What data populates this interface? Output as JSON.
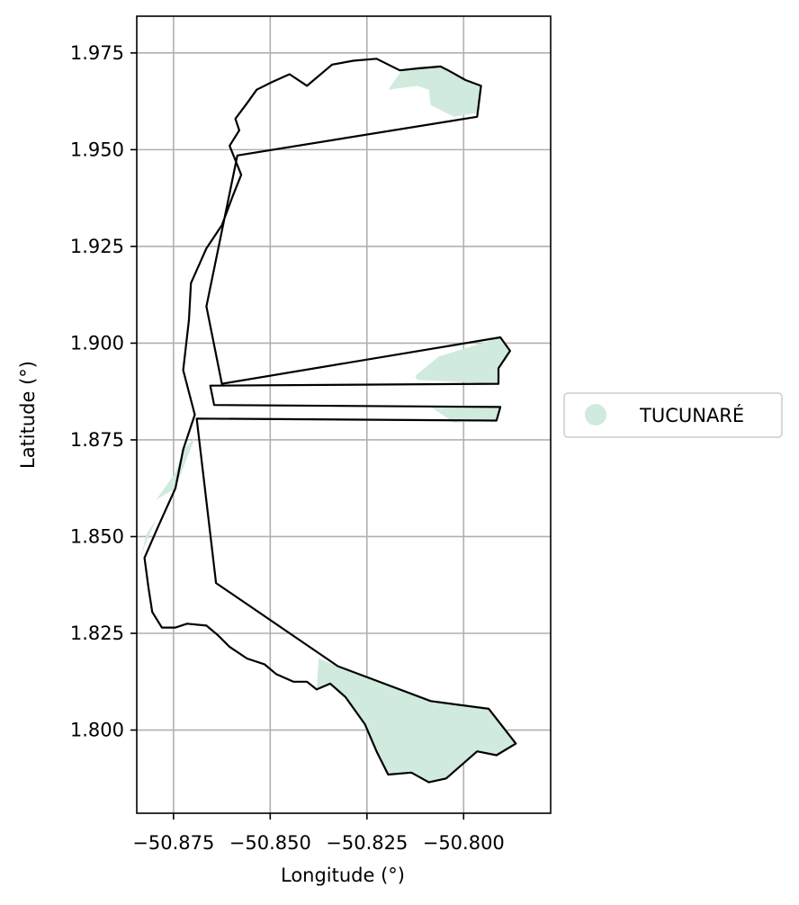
{
  "chart_data": {
    "type": "map",
    "xlabel": "Longitude (°)",
    "ylabel": "Latitude (°)",
    "xlim": [
      -50.8845,
      -50.7775
    ],
    "ylim": [
      1.7785,
      1.9845
    ],
    "grid": true,
    "xticks": [
      -50.875,
      -50.85,
      -50.825,
      -50.8
    ],
    "yticks": [
      1.8,
      1.825,
      1.85,
      1.875,
      1.9,
      1.925,
      1.95,
      1.975
    ],
    "xtick_labels": [
      "−50.875",
      "−50.850",
      "−50.825",
      "−50.800"
    ],
    "ytick_labels": [
      "1.800",
      "1.825",
      "1.850",
      "1.875",
      "1.900",
      "1.925",
      "1.950",
      "1.975"
    ],
    "legend": {
      "placement": "center-right outside",
      "entries": [
        {
          "label": "TUCUNARÉ",
          "color": "#d0eadd"
        }
      ]
    },
    "colors": {
      "fill": "#d0eadd",
      "outline": "#000000",
      "grid": "#b0b0b0"
    },
    "outline_polygon": [
      [
        -50.8605,
        1.951
      ],
      [
        -50.858,
        1.955
      ],
      [
        -50.859,
        1.958
      ],
      [
        -50.856,
        1.962
      ],
      [
        -50.8535,
        1.9655
      ],
      [
        -50.8495,
        1.9675
      ],
      [
        -50.845,
        1.9695
      ],
      [
        -50.8405,
        1.9665
      ],
      [
        -50.834,
        1.972
      ],
      [
        -50.8285,
        1.973
      ],
      [
        -50.8225,
        1.9735
      ],
      [
        -50.8165,
        1.9705
      ],
      [
        -50.812,
        1.971
      ],
      [
        -50.806,
        1.9715
      ],
      [
        -50.804,
        1.9705
      ],
      [
        -50.7995,
        1.968
      ],
      [
        -50.7955,
        1.9665
      ],
      [
        -50.7965,
        1.9585
      ],
      [
        -50.8585,
        1.9485
      ],
      [
        -50.8665,
        1.9095
      ],
      [
        -50.8625,
        1.8895
      ],
      [
        -50.7905,
        1.9015
      ],
      [
        -50.788,
        1.898
      ],
      [
        -50.791,
        1.8935
      ],
      [
        -50.791,
        1.8895
      ],
      [
        -50.8655,
        1.889
      ],
      [
        -50.8645,
        1.884
      ],
      [
        -50.7905,
        1.8835
      ],
      [
        -50.7915,
        1.88
      ],
      [
        -50.869,
        1.8805
      ],
      [
        -50.864,
        1.838
      ],
      [
        -50.8325,
        1.8165
      ],
      [
        -50.8085,
        1.8075
      ],
      [
        -50.7935,
        1.8055
      ],
      [
        -50.7865,
        1.7965
      ],
      [
        -50.7915,
        1.7935
      ],
      [
        -50.7965,
        1.7945
      ],
      [
        -50.8045,
        1.7875
      ],
      [
        -50.809,
        1.7865
      ],
      [
        -50.8135,
        1.789
      ],
      [
        -50.8195,
        1.7885
      ],
      [
        -50.8225,
        1.7945
      ],
      [
        -50.8255,
        1.8015
      ],
      [
        -50.8305,
        1.8085
      ],
      [
        -50.8345,
        1.812
      ],
      [
        -50.838,
        1.8105
      ],
      [
        -50.8405,
        1.8125
      ],
      [
        -50.844,
        1.8125
      ],
      [
        -50.8485,
        1.8145
      ],
      [
        -50.8515,
        1.817
      ],
      [
        -50.856,
        1.8185
      ],
      [
        -50.8605,
        1.8215
      ],
      [
        -50.8635,
        1.8245
      ],
      [
        -50.8665,
        1.827
      ],
      [
        -50.8715,
        1.8275
      ],
      [
        -50.8745,
        1.8265
      ],
      [
        -50.878,
        1.8265
      ],
      [
        -50.8805,
        1.8305
      ],
      [
        -50.8815,
        1.837
      ],
      [
        -50.8825,
        1.8445
      ],
      [
        -50.879,
        1.8525
      ],
      [
        -50.8745,
        1.8625
      ],
      [
        -50.8725,
        1.8725
      ],
      [
        -50.8695,
        1.8815
      ],
      [
        -50.8725,
        1.893
      ],
      [
        -50.871,
        1.906
      ],
      [
        -50.8705,
        1.9155
      ],
      [
        -50.8665,
        1.9245
      ],
      [
        -50.8625,
        1.9305
      ],
      [
        -50.8595,
        1.9385
      ],
      [
        -50.8575,
        1.9435
      ],
      [
        -50.8605,
        1.951
      ]
    ],
    "filled_regions": [
      [
        [
          -50.8195,
          1.9655
        ],
        [
          -50.816,
          1.9705
        ],
        [
          -50.8115,
          1.9715
        ],
        [
          -50.806,
          1.9715
        ],
        [
          -50.8025,
          1.9695
        ],
        [
          -50.7985,
          1.9675
        ],
        [
          -50.7955,
          1.9665
        ],
        [
          -50.7965,
          1.9595
        ],
        [
          -50.8025,
          1.9585
        ],
        [
          -50.8085,
          1.9615
        ],
        [
          -50.809,
          1.9655
        ],
        [
          -50.812,
          1.9665
        ],
        [
          -50.8195,
          1.9655
        ]
      ],
      [
        [
          -50.8125,
          1.8915
        ],
        [
          -50.8065,
          1.8965
        ],
        [
          -50.7985,
          1.899
        ],
        [
          -50.7905,
          1.9015
        ],
        [
          -50.788,
          1.898
        ],
        [
          -50.791,
          1.8935
        ],
        [
          -50.791,
          1.8895
        ],
        [
          -50.812,
          1.8905
        ],
        [
          -50.8125,
          1.8915
        ]
      ],
      [
        [
          -50.8085,
          1.8835
        ],
        [
          -50.7905,
          1.8835
        ],
        [
          -50.7915,
          1.88
        ],
        [
          -50.8025,
          1.8795
        ],
        [
          -50.8085,
          1.8835
        ]
      ],
      [
        [
          -50.8795,
          1.8595
        ],
        [
          -50.8745,
          1.8665
        ],
        [
          -50.8725,
          1.8725
        ],
        [
          -50.8695,
          1.8755
        ],
        [
          -50.8745,
          1.8625
        ],
        [
          -50.8795,
          1.8595
        ]
      ],
      [
        [
          -50.8835,
          1.8445
        ],
        [
          -50.882,
          1.8505
        ],
        [
          -50.8795,
          1.8545
        ],
        [
          -50.8825,
          1.8475
        ],
        [
          -50.8835,
          1.8445
        ]
      ],
      [
        [
          -50.8375,
          1.8185
        ],
        [
          -50.8325,
          1.8165
        ],
        [
          -50.8085,
          1.8075
        ],
        [
          -50.7935,
          1.8055
        ],
        [
          -50.7865,
          1.7965
        ],
        [
          -50.7915,
          1.7935
        ],
        [
          -50.7965,
          1.7945
        ],
        [
          -50.8045,
          1.7875
        ],
        [
          -50.809,
          1.7865
        ],
        [
          -50.8135,
          1.789
        ],
        [
          -50.8195,
          1.7885
        ],
        [
          -50.8225,
          1.7945
        ],
        [
          -50.8255,
          1.8015
        ],
        [
          -50.8305,
          1.8085
        ],
        [
          -50.8345,
          1.812
        ],
        [
          -50.838,
          1.8105
        ],
        [
          -50.8375,
          1.8185
        ]
      ]
    ]
  }
}
